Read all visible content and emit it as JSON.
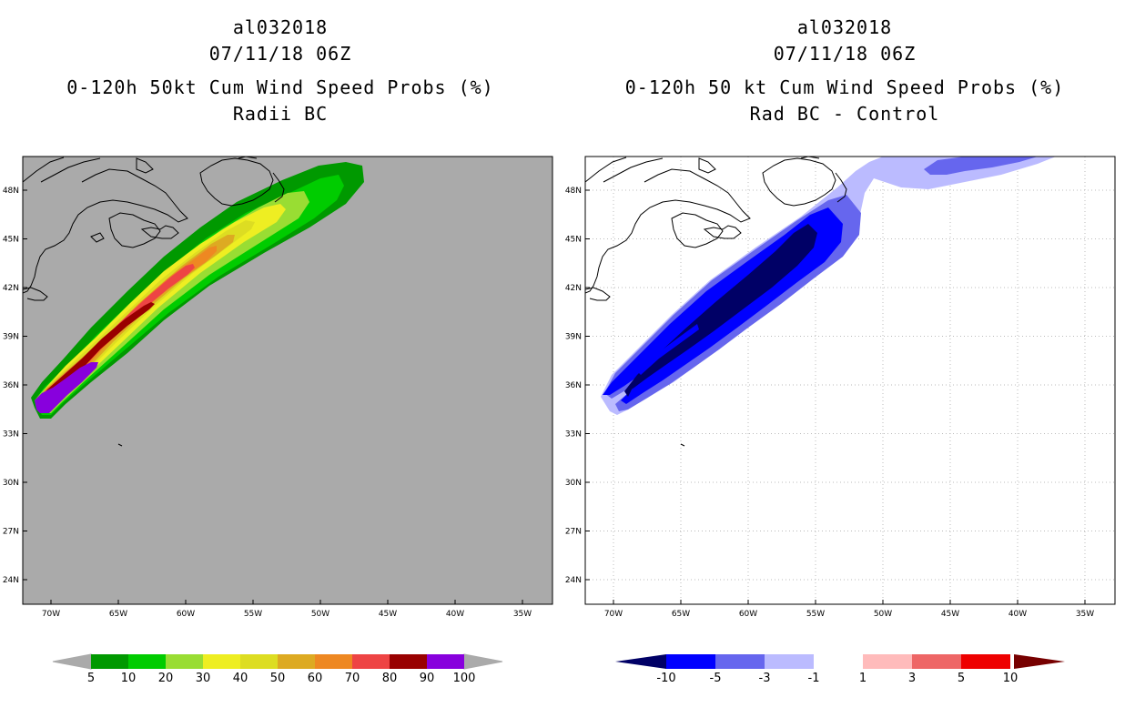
{
  "left_panel": {
    "title_line1": "al032018",
    "title_line2": "07/11/18 06Z",
    "title_line3": "0-120h 50kt Cum Wind Speed Probs (%)",
    "title_line4": "Radii BC",
    "background_color": "#aaaaaa",
    "colorbar": {
      "labels": [
        "5",
        "10",
        "20",
        "30",
        "40",
        "50",
        "60",
        "70",
        "80",
        "90",
        "100"
      ],
      "colors": [
        "#009900",
        "#00cc00",
        "#99dd33",
        "#eeee22",
        "#dddd22",
        "#ddaa22",
        "#ee8822",
        "#ee4444",
        "#990000",
        "#8800dd"
      ]
    }
  },
  "right_panel": {
    "title_line1": "al032018",
    "title_line2": "07/11/18 06Z",
    "title_line3": "0-120h 50 kt Cum Wind Speed Probs (%)",
    "title_line4": "Rad BC - Control",
    "background_color": "#ffffff",
    "colorbar": {
      "labels": [
        "-10",
        "-5",
        "-3",
        "-1",
        "1",
        "3",
        "5",
        "10"
      ],
      "colors": [
        "#000066",
        "#0000ff",
        "#6666ee",
        "#bbbbff",
        "#ffffff",
        "#ffbbbb",
        "#ee6666",
        "#ee0000",
        "#770000"
      ]
    }
  },
  "map_axes": {
    "lat_labels": [
      "48N",
      "45N",
      "42N",
      "39N",
      "36N",
      "33N",
      "30N",
      "27N",
      "24N"
    ],
    "lon_labels": [
      "70W",
      "65W",
      "60W",
      "55W",
      "50W",
      "45W",
      "40W",
      "35W"
    ]
  }
}
